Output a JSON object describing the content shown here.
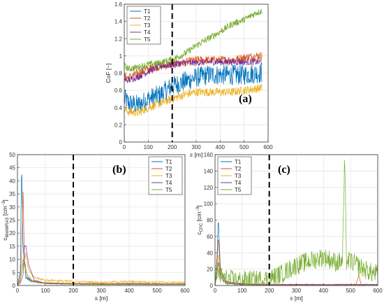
{
  "colors": {
    "T1": "#0072BD",
    "T2": "#D95319",
    "T3": "#EDB120",
    "T4": "#7E2F8E",
    "T5": "#77AC30"
  },
  "chart_data": [
    {
      "panel": "(a)",
      "type": "line",
      "xlabel": "s [m]",
      "ylabel": "CoF [−]",
      "xlim": [
        0,
        600
      ],
      "ylim": [
        0,
        1.6
      ],
      "xticks": [
        0,
        100,
        200,
        300,
        400,
        500,
        600
      ],
      "yticks": [
        0,
        0.2,
        0.4,
        0.6,
        0.8,
        1,
        1.2,
        1.4,
        1.6
      ],
      "ytick_labels": [
        "0",
        "0.2",
        "0.4",
        "0.6",
        "0.8",
        "1",
        "1.2",
        "1.4",
        "1.6"
      ],
      "grid": true,
      "legend": "top-left",
      "vline_x": 200,
      "series": [
        {
          "name": "T1",
          "color": "#0072BD",
          "x": [
            0,
            20,
            60,
            100,
            150,
            200,
            250,
            300,
            350,
            400,
            450,
            500,
            550,
            575
          ],
          "y": [
            0.5,
            0.45,
            0.43,
            0.5,
            0.55,
            0.65,
            0.7,
            0.75,
            0.78,
            0.78,
            0.78,
            0.78,
            0.8,
            0.8
          ],
          "noise": 0.12
        },
        {
          "name": "T2",
          "color": "#D95319",
          "x": [
            0,
            20,
            60,
            100,
            150,
            200,
            250,
            300,
            350,
            400,
            450,
            500,
            550,
            575
          ],
          "y": [
            0.75,
            0.75,
            0.8,
            0.85,
            0.88,
            0.9,
            0.92,
            0.95,
            0.95,
            0.95,
            0.95,
            0.98,
            1.0,
            1.0
          ],
          "noise": 0.05
        },
        {
          "name": "T3",
          "color": "#EDB120",
          "x": [
            0,
            20,
            60,
            100,
            150,
            200,
            250,
            300,
            350,
            400,
            450,
            500,
            550,
            575
          ],
          "y": [
            0.38,
            0.35,
            0.34,
            0.4,
            0.45,
            0.5,
            0.55,
            0.58,
            0.58,
            0.58,
            0.58,
            0.6,
            0.62,
            0.63
          ],
          "noise": 0.05
        },
        {
          "name": "T4",
          "color": "#7E2F8E",
          "x": [
            0,
            20,
            60,
            100,
            150,
            200,
            250,
            300,
            350,
            400,
            450,
            500,
            550,
            575
          ],
          "y": [
            0.72,
            0.72,
            0.76,
            0.82,
            0.88,
            0.9,
            0.92,
            0.92,
            0.93,
            0.93,
            0.93,
            0.93,
            0.93,
            0.93
          ],
          "noise": 0.04
        },
        {
          "name": "T5",
          "color": "#77AC30",
          "x": [
            0,
            20,
            60,
            100,
            150,
            200,
            250,
            300,
            350,
            400,
            450,
            500,
            550,
            575
          ],
          "y": [
            0.88,
            0.85,
            0.87,
            0.9,
            0.92,
            0.96,
            1.02,
            1.12,
            1.2,
            1.28,
            1.37,
            1.42,
            1.5,
            1.52
          ],
          "noise": 0.04
        }
      ]
    },
    {
      "panel": "(b)",
      "type": "line",
      "xlabel": "s [m]",
      "ylabel": "c_MiniWRAS [cm⁻³]",
      "ylabel_main": "c",
      "ylabel_sub": "MiniWRAS",
      "ylabel_unit": "[cm",
      "ylabel_sup": "−3",
      "ylabel_close": "]",
      "xlim": [
        0,
        600
      ],
      "ylim": [
        0,
        50
      ],
      "xticks": [
        0,
        100,
        200,
        300,
        400,
        500,
        600
      ],
      "yticks": [
        0,
        5,
        10,
        15,
        20,
        25,
        30,
        35,
        40,
        45,
        50
      ],
      "ytick_labels": [
        "0",
        "5",
        "10",
        "15",
        "20",
        "25",
        "30",
        "35",
        "40",
        "45",
        "50"
      ],
      "grid": true,
      "legend": "top-right",
      "vline_x": 200,
      "series": [
        {
          "name": "T1",
          "color": "#0072BD",
          "x": [
            0,
            10,
            15,
            20,
            30,
            50,
            80,
            120,
            200,
            300,
            400,
            500,
            600
          ],
          "y": [
            0,
            5,
            47,
            15,
            3,
            1.5,
            1.0,
            0.8,
            0.6,
            0.5,
            0.6,
            0.5,
            0.5
          ],
          "noise": 0.3
        },
        {
          "name": "T2",
          "color": "#D95319",
          "x": [
            0,
            10,
            15,
            20,
            25,
            35,
            60,
            100,
            200,
            300,
            400,
            500,
            600
          ],
          "y": [
            0,
            3,
            12,
            36,
            10,
            3,
            1.5,
            1.0,
            0.8,
            0.7,
            0.8,
            0.7,
            0.7
          ],
          "noise": 0.3
        },
        {
          "name": "T3",
          "color": "#EDB120",
          "x": [
            0,
            10,
            20,
            30,
            40,
            60,
            100,
            150,
            200,
            300,
            400,
            500,
            600
          ],
          "y": [
            0,
            2,
            8,
            12,
            6,
            3,
            2,
            1.8,
            1.5,
            1.2,
            1.5,
            1.3,
            1.2
          ],
          "noise": 0.5
        },
        {
          "name": "T4",
          "color": "#7E2F8E",
          "x": [
            0,
            10,
            20,
            25,
            30,
            40,
            60,
            100,
            200,
            300,
            400,
            500,
            600
          ],
          "y": [
            0,
            1,
            4,
            15,
            15,
            8,
            2,
            0.8,
            0.5,
            0.4,
            0.4,
            0.4,
            0.4
          ],
          "noise": 0.2
        },
        {
          "name": "T5",
          "color": "#77AC30",
          "x": [
            0,
            10,
            20,
            30,
            50,
            80,
            120,
            200,
            300,
            400,
            500,
            600
          ],
          "y": [
            0,
            2,
            10,
            5,
            2,
            1,
            0.6,
            0.5,
            0.4,
            0.4,
            0.4,
            0.4
          ],
          "noise": 0.2
        }
      ]
    },
    {
      "panel": "(c)",
      "type": "line",
      "xlabel": "s [m]",
      "ylabel": "c_CPC [cm⁻³]",
      "ylabel_main": "c",
      "ylabel_sub": "CPC",
      "ylabel_unit": "[cm",
      "ylabel_sup": "−3",
      "ylabel_close": "]",
      "xlim": [
        0,
        600
      ],
      "ylim": [
        0,
        160
      ],
      "xticks": [
        0,
        100,
        200,
        300,
        400,
        500,
        600
      ],
      "yticks": [
        0,
        20,
        40,
        60,
        80,
        100,
        120,
        140,
        160
      ],
      "ytick_labels": [
        "0",
        "20",
        "40",
        "60",
        "80",
        "100",
        "120",
        "140",
        "160"
      ],
      "grid": true,
      "legend": "top-left",
      "vline_x": 200,
      "series": [
        {
          "name": "T1",
          "color": "#0072BD",
          "x": [
            0,
            8,
            12,
            20,
            40,
            80,
            150,
            250,
            400,
            600
          ],
          "y": [
            0,
            40,
            83,
            20,
            5,
            2,
            1,
            1,
            1,
            1
          ],
          "noise": 1
        },
        {
          "name": "T2",
          "color": "#D95319",
          "x": [
            0,
            8,
            12,
            20,
            40,
            80,
            150,
            250,
            400,
            520,
            530,
            540,
            600
          ],
          "y": [
            0,
            30,
            60,
            15,
            5,
            2,
            1.5,
            1,
            1,
            1,
            12,
            1,
            1
          ],
          "noise": 1
        },
        {
          "name": "T3",
          "color": "#EDB120",
          "x": [
            0,
            8,
            12,
            20,
            40,
            80,
            150,
            250,
            400,
            600
          ],
          "y": [
            0,
            20,
            40,
            12,
            4,
            2,
            1,
            1,
            1,
            1
          ],
          "noise": 1
        },
        {
          "name": "T4",
          "color": "#7E2F8E",
          "x": [
            0,
            8,
            12,
            20,
            40,
            80,
            150,
            250,
            400,
            600
          ],
          "y": [
            0,
            15,
            30,
            10,
            3,
            2,
            1,
            1,
            1,
            1
          ],
          "noise": 1
        },
        {
          "name": "T5",
          "color": "#77AC30",
          "x": [
            0,
            10,
            20,
            40,
            80,
            150,
            200,
            250,
            300,
            350,
            400,
            450,
            470,
            478,
            485,
            500,
            550,
            580,
            600
          ],
          "y": [
            0,
            20,
            12,
            8,
            6,
            7,
            8,
            15,
            25,
            30,
            35,
            28,
            30,
            155,
            30,
            30,
            20,
            15,
            15
          ],
          "noise": 12
        }
      ]
    }
  ]
}
